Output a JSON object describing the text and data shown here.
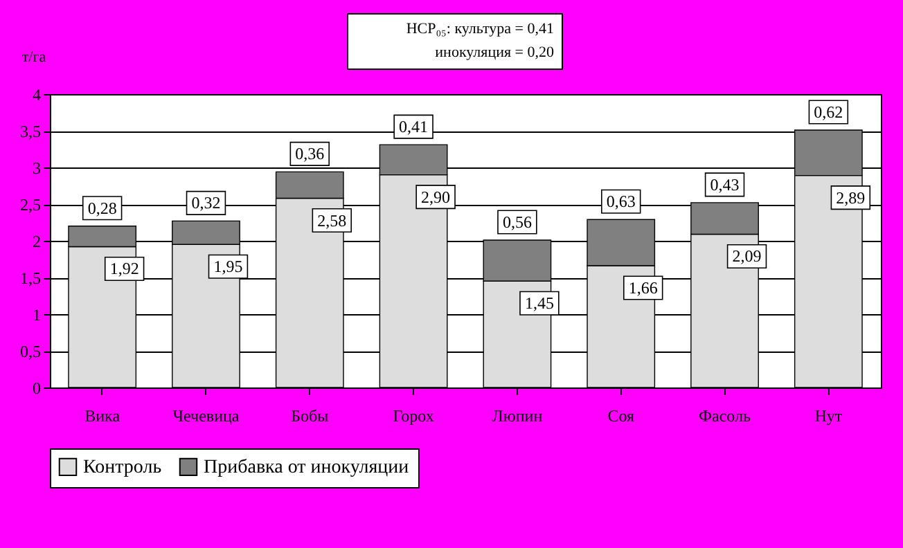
{
  "chart_data": {
    "type": "bar",
    "stacked": true,
    "ylabel": "т/га",
    "categories": [
      "Вика",
      "Чечевица",
      "Бобы",
      "Горох",
      "Люпин",
      "Соя",
      "Фасоль",
      "Нут"
    ],
    "series": [
      {
        "name": "Контроль",
        "color": "#dddddd",
        "values": [
          1.92,
          1.95,
          2.58,
          2.9,
          1.45,
          1.66,
          2.09,
          2.89
        ],
        "value_labels": [
          "1,92",
          "1,95",
          "2,58",
          "2,90",
          "1,45",
          "1,66",
          "2,09",
          "2,89"
        ]
      },
      {
        "name": "Прибавка от инокуляции",
        "color": "#808080",
        "values": [
          0.28,
          0.32,
          0.36,
          0.41,
          0.56,
          0.63,
          0.43,
          0.62
        ],
        "value_labels": [
          "0,28",
          "0,32",
          "0,36",
          "0,41",
          "0,56",
          "0,63",
          "0,43",
          "0,62"
        ]
      }
    ],
    "ylim": [
      0,
      4
    ],
    "yticks": [
      0,
      {
        "value": 0.5,
        "label": "0,5"
      },
      1,
      {
        "value": 1.5,
        "label": "1,5"
      },
      2,
      {
        "value": 2.5,
        "label": "2,5"
      },
      3,
      {
        "value": 3.5,
        "label": "3,5"
      },
      4
    ],
    "grid": "y",
    "legend": "bottom",
    "annotations": [
      "НСР₀₅: культура = 0,41",
      "инокуляция = 0,20"
    ]
  }
}
